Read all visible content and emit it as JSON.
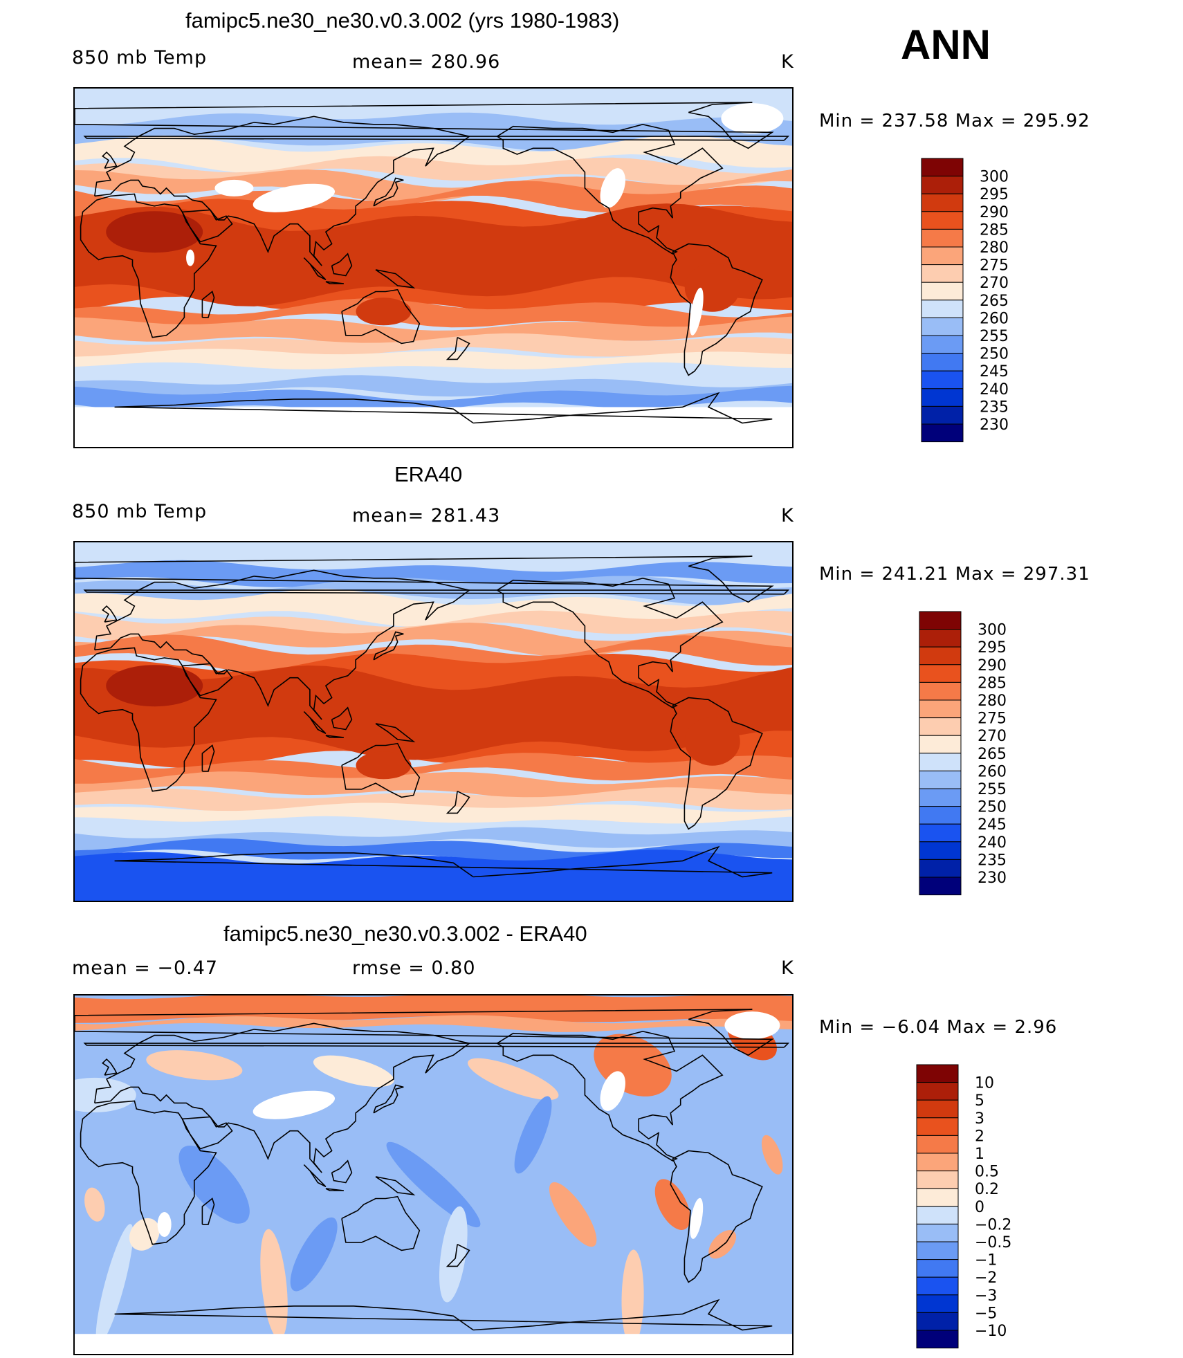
{
  "season": "ANN",
  "colors": {
    "abs_scale": [
      "#00007a",
      "#0021a8",
      "#0036d2",
      "#1a53f0",
      "#4179f2",
      "#6b9bf4",
      "#99bdf6",
      "#cfe2fa",
      "#fdebd8",
      "#fdcdb0",
      "#fba57a",
      "#f57a48",
      "#e9521e",
      "#d13a0f",
      "#ac1f09",
      "#7e0404"
    ],
    "diff_scale": [
      "#00007a",
      "#0021a8",
      "#0036d2",
      "#1a53f0",
      "#4179f2",
      "#6b9bf4",
      "#99bdf6",
      "#cfe2fa",
      "#fdebd8",
      "#fdcdb0",
      "#fba57a",
      "#f57a48",
      "#e9521e",
      "#d13a0f",
      "#ac1f09",
      "#7e0404"
    ]
  },
  "panels": [
    {
      "title": "famipc5.ne30_ne30.v0.3.002 (yrs 1980-1983)",
      "left": "850 mb Temp",
      "center": "mean=  280.96",
      "unit": "K",
      "minmax": "Min  =  237.58  Max  =  295.92",
      "levels": [
        "300",
        "295",
        "290",
        "285",
        "280",
        "275",
        "270",
        "265",
        "260",
        "255",
        "250",
        "245",
        "240",
        "235",
        "230"
      ]
    },
    {
      "title": "ERA40",
      "left": "850 mb Temp",
      "center": "mean=  281.43",
      "unit": "K",
      "minmax": "Min  =  241.21  Max  =  297.31",
      "levels": [
        "300",
        "295",
        "290",
        "285",
        "280",
        "275",
        "270",
        "265",
        "260",
        "255",
        "250",
        "245",
        "240",
        "235",
        "230"
      ]
    },
    {
      "title": "famipc5.ne30_ne30.v0.3.002 - ERA40",
      "left": "mean  =     −0.47",
      "center": "rmse  =     0.80",
      "unit": "K",
      "minmax": "Min  =     −6.04  Max  =       2.96",
      "levels": [
        "10",
        "5",
        "3",
        "2",
        "1",
        "0.5",
        "0.2",
        "0",
        "−0.2",
        "−0.5",
        "−1",
        "−2",
        "−3",
        "−5",
        "−10"
      ]
    }
  ]
}
